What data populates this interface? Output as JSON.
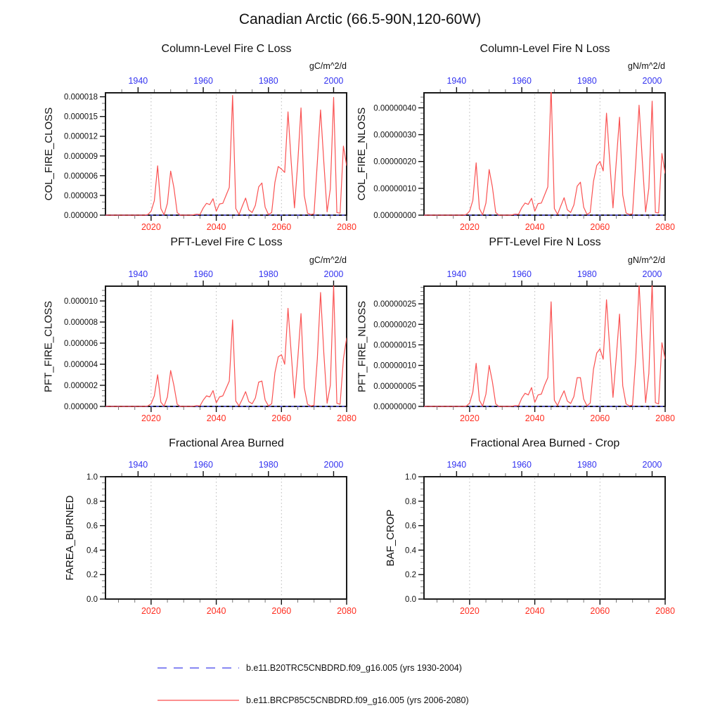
{
  "page_title": "Canadian Arctic (66.5-90N,120-60W)",
  "colors": {
    "x_bottom_labels": "#ff2d1f",
    "x_top_labels": "#3333f0",
    "rcp_line": "#fa5252",
    "historical_line": "#6060ee",
    "gridline": "#b8b8b8",
    "frame": "#1a1a1a",
    "major_tick": "#111111",
    "minor_tick": "#777777"
  },
  "legend": {
    "items": [
      {
        "label": "b.e11.B20TRC5CNBDRD.f09_g16.005 (yrs 1930-2004)",
        "color": "#6060ee",
        "style": "dashed"
      },
      {
        "label": "b.e11.BRCP85C5CNBDRD.f09_g16.005 (yrs 2006-2080)",
        "color": "#fb6a6a",
        "style": "solid"
      }
    ]
  },
  "chart_data": [
    {
      "type": "line",
      "title": "Column-Level Fire C Loss",
      "units": "gC/m^2/d",
      "ylabel": "COL_FIRE_CLOSS",
      "x_bottom": {
        "start": 2006,
        "end": 2080,
        "major_ticks": [
          2020,
          2040,
          2060,
          2080
        ],
        "minor_step": 5
      },
      "x_top": {
        "start": 1930,
        "end": 2004,
        "major_ticks": [
          1940,
          1960,
          1980,
          2000
        ],
        "minor_step": 5
      },
      "y": {
        "value_scale": 1e-06,
        "max": 18.6,
        "major_ticks": [
          0,
          3,
          6,
          9,
          12,
          15,
          18
        ],
        "minor_step": 1,
        "tick_labels": [
          "0.000000",
          "0.000003",
          "0.000006",
          "0.000009",
          "0.000012",
          "0.000015",
          "0.000018"
        ]
      },
      "gridline_years": [
        2020,
        2040,
        2060
      ],
      "series": [
        {
          "name": "b.e11.B20TRC5CNBDRD.f09_g16.005",
          "color": "#6060ee",
          "style": "dashed",
          "constant": 0
        },
        {
          "name": "b.e11.BRCP85C5CNBDRD.f09_g16.005",
          "color": "#fa5252",
          "style": "solid",
          "start_year": 2006,
          "values": [
            0,
            0,
            0,
            0,
            0,
            0,
            0,
            0,
            0,
            0,
            0,
            0,
            0,
            0.1,
            0.6,
            2.2,
            7.5,
            1.0,
            0.05,
            1.8,
            6.7,
            4.2,
            0.4,
            0,
            0,
            0,
            0,
            0.05,
            0.15,
            0.1,
            1.1,
            1.8,
            1.6,
            2.5,
            0.6,
            1.7,
            1.8,
            3.0,
            4.2,
            18.2,
            1.0,
            0.1,
            1.4,
            2.6,
            0.8,
            0.4,
            1.5,
            4.3,
            4.9,
            1.2,
            0.1,
            0.4,
            5.0,
            7.4,
            7.0,
            6.5,
            15.7,
            8.0,
            1.1,
            8.0,
            16.3,
            3.0,
            0.3,
            0.1,
            0.2,
            8.0,
            16.0,
            8.0,
            0.5,
            4.0,
            17.9,
            0.4,
            0.3,
            10.5,
            7.5
          ]
        }
      ]
    },
    {
      "type": "line",
      "title": "Column-Level Fire N Loss",
      "units": "gN/m^2/d",
      "ylabel": "COL_FIRE_NLOSS",
      "x_bottom": {
        "start": 2006,
        "end": 2080,
        "major_ticks": [
          2020,
          2040,
          2060,
          2080
        ],
        "minor_step": 5
      },
      "x_top": {
        "start": 1930,
        "end": 2004,
        "major_ticks": [
          1940,
          1960,
          1980,
          2000
        ],
        "minor_step": 5
      },
      "y": {
        "value_scale": 1e-07,
        "max": 4.56,
        "major_ticks": [
          0,
          1,
          2,
          3,
          4
        ],
        "minor_step": 0.2,
        "tick_labels": [
          "0.00000000",
          "0.00000010",
          "0.00000020",
          "0.00000030",
          "0.00000040"
        ]
      },
      "gridline_years": [
        2020,
        2040,
        2060
      ],
      "series": [
        {
          "name": "b.e11.B20TRC5CNBDRD.f09_g16.005",
          "color": "#6060ee",
          "style": "dashed",
          "constant": 0
        },
        {
          "name": "b.e11.BRCP85C5CNBDRD.f09_g16.005",
          "color": "#fa5252",
          "style": "solid",
          "start_year": 2006,
          "values": [
            0,
            0,
            0,
            0,
            0,
            0,
            0,
            0,
            0,
            0,
            0,
            0,
            0,
            0.03,
            0.15,
            0.55,
            1.95,
            0.25,
            0.01,
            0.45,
            1.7,
            1.05,
            0.1,
            0,
            0,
            0,
            0,
            0.01,
            0.04,
            0.03,
            0.28,
            0.45,
            0.4,
            0.63,
            0.15,
            0.43,
            0.45,
            0.75,
            1.05,
            4.8,
            0.25,
            0.03,
            0.35,
            0.65,
            0.2,
            0.1,
            0.38,
            1.08,
            1.23,
            0.3,
            0.03,
            0.1,
            1.25,
            1.85,
            2.0,
            1.65,
            3.8,
            2.0,
            0.27,
            2.0,
            3.65,
            0.75,
            0.08,
            0.03,
            0.05,
            2.0,
            4.1,
            2.0,
            0.12,
            1.0,
            4.25,
            0.1,
            0.08,
            2.3,
            1.55
          ]
        }
      ]
    },
    {
      "type": "line",
      "title": "PFT-Level Fire C Loss",
      "units": "gC/m^2/d",
      "ylabel": "PFT_FIRE_CLOSS",
      "x_bottom": {
        "start": 2006,
        "end": 2080,
        "major_ticks": [
          2020,
          2040,
          2060,
          2080
        ],
        "minor_step": 5
      },
      "x_top": {
        "start": 1930,
        "end": 2004,
        "major_ticks": [
          1940,
          1960,
          1980,
          2000
        ],
        "minor_step": 5
      },
      "y": {
        "value_scale": 1e-06,
        "max": 11.4,
        "major_ticks": [
          0,
          2,
          4,
          6,
          8,
          10
        ],
        "minor_step": 0.5,
        "tick_labels": [
          "0.000000",
          "0.000002",
          "0.000004",
          "0.000006",
          "0.000008",
          "0.000010"
        ]
      },
      "gridline_years": [
        2020,
        2040,
        2060
      ],
      "series": [
        {
          "name": "b.e11.B20TRC5CNBDRD.f09_g16.005",
          "color": "#6060ee",
          "style": "dashed",
          "constant": 0
        },
        {
          "name": "b.e11.BRCP85C5CNBDRD.f09_g16.005",
          "color": "#fa5252",
          "style": "solid",
          "start_year": 2006,
          "values": [
            0,
            0,
            0,
            0,
            0,
            0,
            0,
            0,
            0,
            0,
            0,
            0,
            0,
            0.05,
            0.25,
            1.0,
            3.0,
            0.4,
            0.02,
            0.9,
            3.4,
            2.0,
            0.2,
            0,
            0,
            0,
            0,
            0.02,
            0.08,
            0.05,
            0.6,
            1.0,
            0.9,
            1.5,
            0.35,
            0.9,
            1.0,
            1.7,
            2.4,
            8.2,
            0.5,
            0.05,
            0.7,
            1.4,
            0.45,
            0.25,
            0.8,
            2.3,
            2.4,
            0.6,
            0.05,
            0.25,
            3.2,
            4.7,
            4.9,
            4.0,
            9.3,
            5.0,
            0.8,
            4.5,
            8.8,
            1.8,
            0.2,
            0.05,
            0.1,
            4.5,
            10.8,
            5.0,
            0.3,
            2.0,
            11.5,
            0.3,
            0.2,
            4.5,
            6.5
          ]
        }
      ]
    },
    {
      "type": "line",
      "title": "PFT-Level Fire N Loss",
      "units": "gN/m^2/d",
      "ylabel": "PFT_FIRE_NLOSS",
      "x_bottom": {
        "start": 2006,
        "end": 2080,
        "major_ticks": [
          2020,
          2040,
          2060,
          2080
        ],
        "minor_step": 5
      },
      "x_top": {
        "start": 1930,
        "end": 2004,
        "major_ticks": [
          1940,
          1960,
          1980,
          2000
        ],
        "minor_step": 5
      },
      "y": {
        "value_scale": 1e-08,
        "max": 29.3,
        "major_ticks": [
          0,
          5,
          10,
          15,
          20,
          25
        ],
        "minor_step": 1,
        "tick_labels": [
          "0.00000000",
          "0.00000005",
          "0.00000010",
          "0.00000015",
          "0.00000020",
          "0.00000025"
        ]
      },
      "gridline_years": [
        2020,
        2040,
        2060
      ],
      "series": [
        {
          "name": "b.e11.B20TRC5CNBDRD.f09_g16.005",
          "color": "#6060ee",
          "style": "dashed",
          "constant": 0
        },
        {
          "name": "b.e11.BRCP85C5CNBDRD.f09_g16.005",
          "color": "#fa5252",
          "style": "solid",
          "start_year": 2006,
          "values": [
            0,
            0,
            0,
            0,
            0,
            0,
            0,
            0,
            0,
            0,
            0,
            0,
            0,
            0.1,
            0.8,
            3.5,
            10.5,
            1.5,
            0.05,
            3.0,
            10.0,
            6.0,
            0.6,
            0,
            0,
            0,
            0,
            0.05,
            0.2,
            0.15,
            2.0,
            3.2,
            2.8,
            4.6,
            1.0,
            2.8,
            3.0,
            5.2,
            7.0,
            25.5,
            1.5,
            0.2,
            2.2,
            3.8,
            1.3,
            0.7,
            2.4,
            7.0,
            7.0,
            1.8,
            0.15,
            0.8,
            9.0,
            13.0,
            14.0,
            11.5,
            26.0,
            14.0,
            2.2,
            12.0,
            22.5,
            5.0,
            0.6,
            0.15,
            0.3,
            12.0,
            30.0,
            14.0,
            0.9,
            8.0,
            30.0,
            0.9,
            0.6,
            15.5,
            11.5
          ]
        }
      ]
    },
    {
      "type": "line",
      "title": "Fractional Area Burned",
      "units": null,
      "ylabel": "FAREA_BURNED",
      "x_bottom": {
        "start": 2006,
        "end": 2080,
        "major_ticks": [
          2020,
          2040,
          2060,
          2080
        ],
        "minor_step": 5
      },
      "x_top": {
        "start": 1930,
        "end": 2004,
        "major_ticks": [
          1940,
          1960,
          1980,
          2000
        ],
        "minor_step": 5
      },
      "y": {
        "value_scale": 1,
        "max": 1.0,
        "major_ticks": [
          0,
          0.2,
          0.4,
          0.6,
          0.8,
          1.0
        ],
        "minor_step": 0.05,
        "tick_labels": [
          "0.0",
          "0.2",
          "0.4",
          "0.6",
          "0.8",
          "1.0"
        ]
      },
      "gridline_years": [
        2020,
        2040,
        2060
      ],
      "series": []
    },
    {
      "type": "line",
      "title": "Fractional Area Burned - Crop",
      "units": null,
      "ylabel": "BAF_CROP",
      "x_bottom": {
        "start": 2006,
        "end": 2080,
        "major_ticks": [
          2020,
          2040,
          2060,
          2080
        ],
        "minor_step": 5
      },
      "x_top": {
        "start": 1930,
        "end": 2004,
        "major_ticks": [
          1940,
          1960,
          1980,
          2000
        ],
        "minor_step": 5
      },
      "y": {
        "value_scale": 1,
        "max": 1.0,
        "major_ticks": [
          0,
          0.2,
          0.4,
          0.6,
          0.8,
          1.0
        ],
        "minor_step": 0.05,
        "tick_labels": [
          "0.0",
          "0.2",
          "0.4",
          "0.6",
          "0.8",
          "1.0"
        ]
      },
      "gridline_years": [
        2020,
        2040,
        2060
      ],
      "series": []
    }
  ]
}
